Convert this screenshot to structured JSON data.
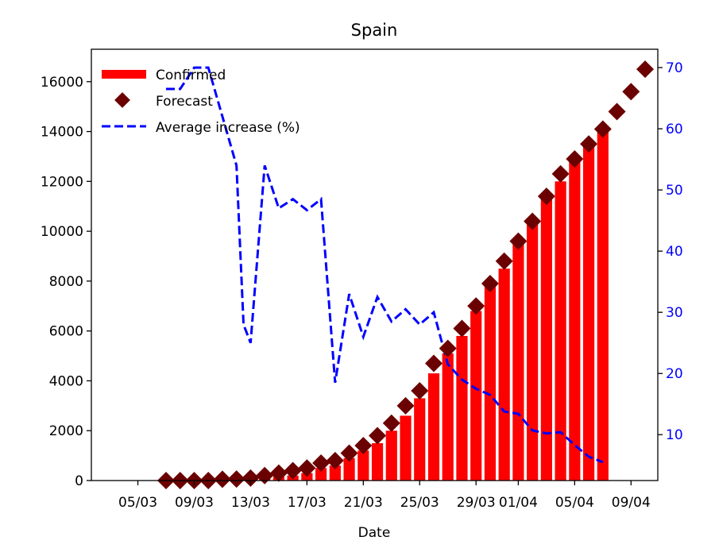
{
  "chart_data": {
    "type": "bar",
    "title": "Spain",
    "xlabel": "Date",
    "ylabel": "",
    "ylim": [
      0,
      17300
    ],
    "y2lim": [
      2.5,
      73
    ],
    "y_ticks": [
      0,
      2000,
      4000,
      6000,
      8000,
      10000,
      12000,
      14000,
      16000
    ],
    "y2_ticks": [
      10,
      20,
      30,
      40,
      50,
      60,
      70
    ],
    "x_ticks": [
      {
        "day": 5,
        "label": "05/03"
      },
      {
        "day": 9,
        "label": "09/03"
      },
      {
        "day": 13,
        "label": "13/03"
      },
      {
        "day": 17,
        "label": "17/03"
      },
      {
        "day": 21,
        "label": "21/03"
      },
      {
        "day": 25,
        "label": "25/03"
      },
      {
        "day": 29,
        "label": "29/03"
      },
      {
        "day": 32,
        "label": "01/04"
      },
      {
        "day": 36,
        "label": "05/04"
      },
      {
        "day": 40,
        "label": "09/04"
      }
    ],
    "xlim": [
      1.7,
      41.9
    ],
    "colors": {
      "confirmed": "#ff0000",
      "forecast": "#6b0000",
      "average": "#0000ff"
    },
    "legend_placement": "upper-left",
    "series": [
      {
        "name": "Confirmed",
        "kind": "bar",
        "axis": "left",
        "x": [
          8,
          9,
          10,
          11,
          12,
          13,
          14,
          15,
          16,
          17,
          18,
          19,
          20,
          21,
          22,
          23,
          24,
          25,
          26,
          27,
          28,
          29,
          30,
          31,
          32,
          33,
          34,
          35,
          36,
          37,
          38
        ],
        "values": [
          0,
          10,
          20,
          30,
          40,
          60,
          100,
          150,
          200,
          300,
          500,
          600,
          900,
          1200,
          1500,
          2000,
          2600,
          3300,
          4300,
          5100,
          5800,
          6800,
          7800,
          8500,
          9500,
          10400,
          11300,
          12000,
          12800,
          13500,
          14000
        ]
      },
      {
        "name": "Forecast",
        "kind": "scatter",
        "axis": "left",
        "x": [
          7,
          8,
          9,
          10,
          11,
          12,
          13,
          14,
          15,
          16,
          17,
          18,
          19,
          20,
          21,
          22,
          23,
          24,
          25,
          26,
          27,
          28,
          29,
          30,
          31,
          32,
          33,
          34,
          35,
          36,
          37,
          38,
          39,
          40,
          41
        ],
        "values": [
          0,
          0,
          0,
          0,
          50,
          60,
          100,
          200,
          300,
          400,
          500,
          700,
          800,
          1100,
          1400,
          1800,
          2300,
          3000,
          3600,
          4700,
          5300,
          6100,
          7000,
          7900,
          8800,
          9600,
          10400,
          11400,
          12300,
          12900,
          13500,
          14100,
          14800,
          15600,
          16500
        ]
      },
      {
        "name": "Average increase (%)",
        "kind": "line",
        "axis": "right",
        "x": [
          7,
          8,
          9,
          10,
          11,
          12,
          12.5,
          13,
          14,
          15,
          16,
          17,
          18,
          19,
          20,
          21,
          22,
          23,
          24,
          25,
          26,
          27,
          28,
          29,
          30,
          31,
          32,
          33,
          34,
          35,
          36,
          37,
          38
        ],
        "values": [
          66.5,
          66.5,
          70,
          70,
          62,
          54,
          28,
          25,
          54,
          47,
          48.5,
          46.7,
          48.5,
          18.5,
          33,
          26,
          32.5,
          28.5,
          30.5,
          28,
          30,
          21.5,
          19,
          17.5,
          16.5,
          13.8,
          13.4,
          10.7,
          10.2,
          10.4,
          8.3,
          6.4,
          5.5
        ]
      }
    ]
  }
}
